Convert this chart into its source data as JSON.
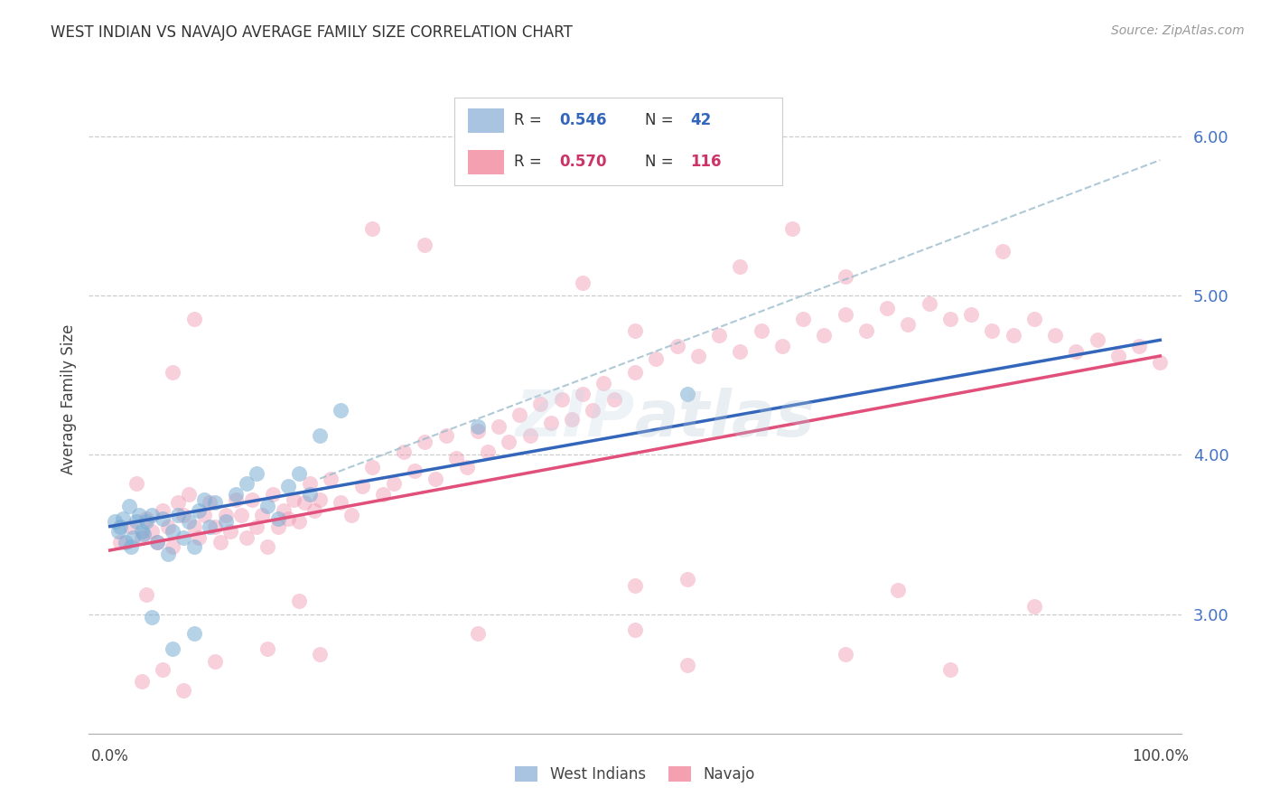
{
  "title": "WEST INDIAN VS NAVAJO AVERAGE FAMILY SIZE CORRELATION CHART",
  "source": "Source: ZipAtlas.com",
  "ylabel": "Average Family Size",
  "right_yticks": [
    3.0,
    4.0,
    5.0,
    6.0
  ],
  "watermark": "ZIPatlas",
  "west_indian_color": "#7aadd4",
  "navajo_color": "#f098b0",
  "west_indian_line_color": "#3366bb",
  "navajo_line_color": "#e0507a",
  "dashed_line_color": "#9bbccc",
  "legend_box_color": "#a8c4e0",
  "legend_box_color2": "#f4a0b0",
  "legend_text_color": "#3366bb",
  "legend_text_color2": "#cc3366",
  "west_indian_points_x": [
    0.5,
    0.8,
    1.0,
    1.2,
    1.5,
    1.8,
    2.0,
    2.2,
    2.5,
    2.8,
    3.0,
    3.2,
    3.5,
    4.0,
    4.5,
    5.0,
    5.5,
    6.0,
    6.5,
    7.0,
    7.5,
    8.0,
    8.5,
    9.0,
    9.5,
    10.0,
    11.0,
    12.0,
    13.0,
    14.0,
    15.0,
    16.0,
    17.0,
    18.0,
    19.0,
    20.0,
    22.0,
    35.0,
    55.0,
    4.0,
    6.0,
    8.0
  ],
  "west_indian_points_y": [
    3.58,
    3.52,
    3.55,
    3.6,
    3.45,
    3.68,
    3.42,
    3.48,
    3.58,
    3.62,
    3.52,
    3.5,
    3.58,
    3.62,
    3.45,
    3.6,
    3.38,
    3.52,
    3.62,
    3.48,
    3.58,
    3.42,
    3.65,
    3.72,
    3.55,
    3.7,
    3.58,
    3.75,
    3.82,
    3.88,
    3.68,
    3.6,
    3.8,
    3.88,
    3.75,
    4.12,
    4.28,
    4.18,
    4.38,
    2.98,
    2.78,
    2.88
  ],
  "navajo_points_x": [
    1.0,
    2.0,
    2.5,
    3.0,
    3.5,
    4.0,
    4.5,
    5.0,
    5.5,
    6.0,
    6.5,
    7.0,
    7.5,
    8.0,
    8.5,
    9.0,
    9.5,
    10.0,
    10.5,
    11.0,
    11.5,
    12.0,
    12.5,
    13.0,
    13.5,
    14.0,
    14.5,
    15.0,
    15.5,
    16.0,
    16.5,
    17.0,
    17.5,
    18.0,
    18.5,
    19.0,
    19.5,
    20.0,
    21.0,
    22.0,
    23.0,
    24.0,
    25.0,
    26.0,
    27.0,
    28.0,
    29.0,
    30.0,
    31.0,
    32.0,
    33.0,
    34.0,
    35.0,
    36.0,
    37.0,
    38.0,
    39.0,
    40.0,
    41.0,
    42.0,
    43.0,
    44.0,
    45.0,
    46.0,
    47.0,
    48.0,
    50.0,
    52.0,
    54.0,
    56.0,
    58.0,
    60.0,
    62.0,
    64.0,
    66.0,
    68.0,
    70.0,
    72.0,
    74.0,
    76.0,
    78.0,
    80.0,
    82.0,
    84.0,
    86.0,
    88.0,
    90.0,
    92.0,
    94.0,
    96.0,
    98.0,
    100.0,
    3.0,
    5.0,
    7.0,
    10.0,
    15.0,
    20.0,
    35.0,
    50.0,
    55.0,
    70.0,
    80.0,
    6.0,
    8.0,
    25.0,
    30.0,
    45.0,
    50.0,
    60.0,
    65.0,
    70.0,
    85.0,
    3.5,
    18.0,
    50.0,
    55.0,
    75.0,
    88.0
  ],
  "navajo_points_y": [
    3.45,
    3.55,
    3.82,
    3.48,
    3.6,
    3.52,
    3.45,
    3.65,
    3.55,
    3.42,
    3.7,
    3.62,
    3.75,
    3.55,
    3.48,
    3.62,
    3.7,
    3.55,
    3.45,
    3.62,
    3.52,
    3.72,
    3.62,
    3.48,
    3.72,
    3.55,
    3.62,
    3.42,
    3.75,
    3.55,
    3.65,
    3.6,
    3.72,
    3.58,
    3.7,
    3.82,
    3.65,
    3.72,
    3.85,
    3.7,
    3.62,
    3.8,
    3.92,
    3.75,
    3.82,
    4.02,
    3.9,
    4.08,
    3.85,
    4.12,
    3.98,
    3.92,
    4.15,
    4.02,
    4.18,
    4.08,
    4.25,
    4.12,
    4.32,
    4.2,
    4.35,
    4.22,
    4.38,
    4.28,
    4.45,
    4.35,
    4.52,
    4.6,
    4.68,
    4.62,
    4.75,
    4.65,
    4.78,
    4.68,
    4.85,
    4.75,
    4.88,
    4.78,
    4.92,
    4.82,
    4.95,
    4.85,
    4.88,
    4.78,
    4.75,
    4.85,
    4.75,
    4.65,
    4.72,
    4.62,
    4.68,
    4.58,
    2.58,
    2.65,
    2.52,
    2.7,
    2.78,
    2.75,
    2.88,
    2.9,
    2.68,
    2.75,
    2.65,
    4.52,
    4.85,
    5.42,
    5.32,
    5.08,
    4.78,
    5.18,
    5.42,
    5.12,
    5.28,
    3.12,
    3.08,
    3.18,
    3.22,
    3.15,
    3.05
  ],
  "west_indian_trend_x": [
    0,
    100
  ],
  "west_indian_trend_y": [
    3.55,
    4.72
  ],
  "navajo_trend_x": [
    0,
    100
  ],
  "navajo_trend_y": [
    3.4,
    4.62
  ],
  "dashed_trend_x": [
    20,
    100
  ],
  "dashed_trend_y": [
    3.85,
    5.85
  ],
  "xlim": [
    -2,
    102
  ],
  "ylim": [
    2.25,
    6.45
  ]
}
